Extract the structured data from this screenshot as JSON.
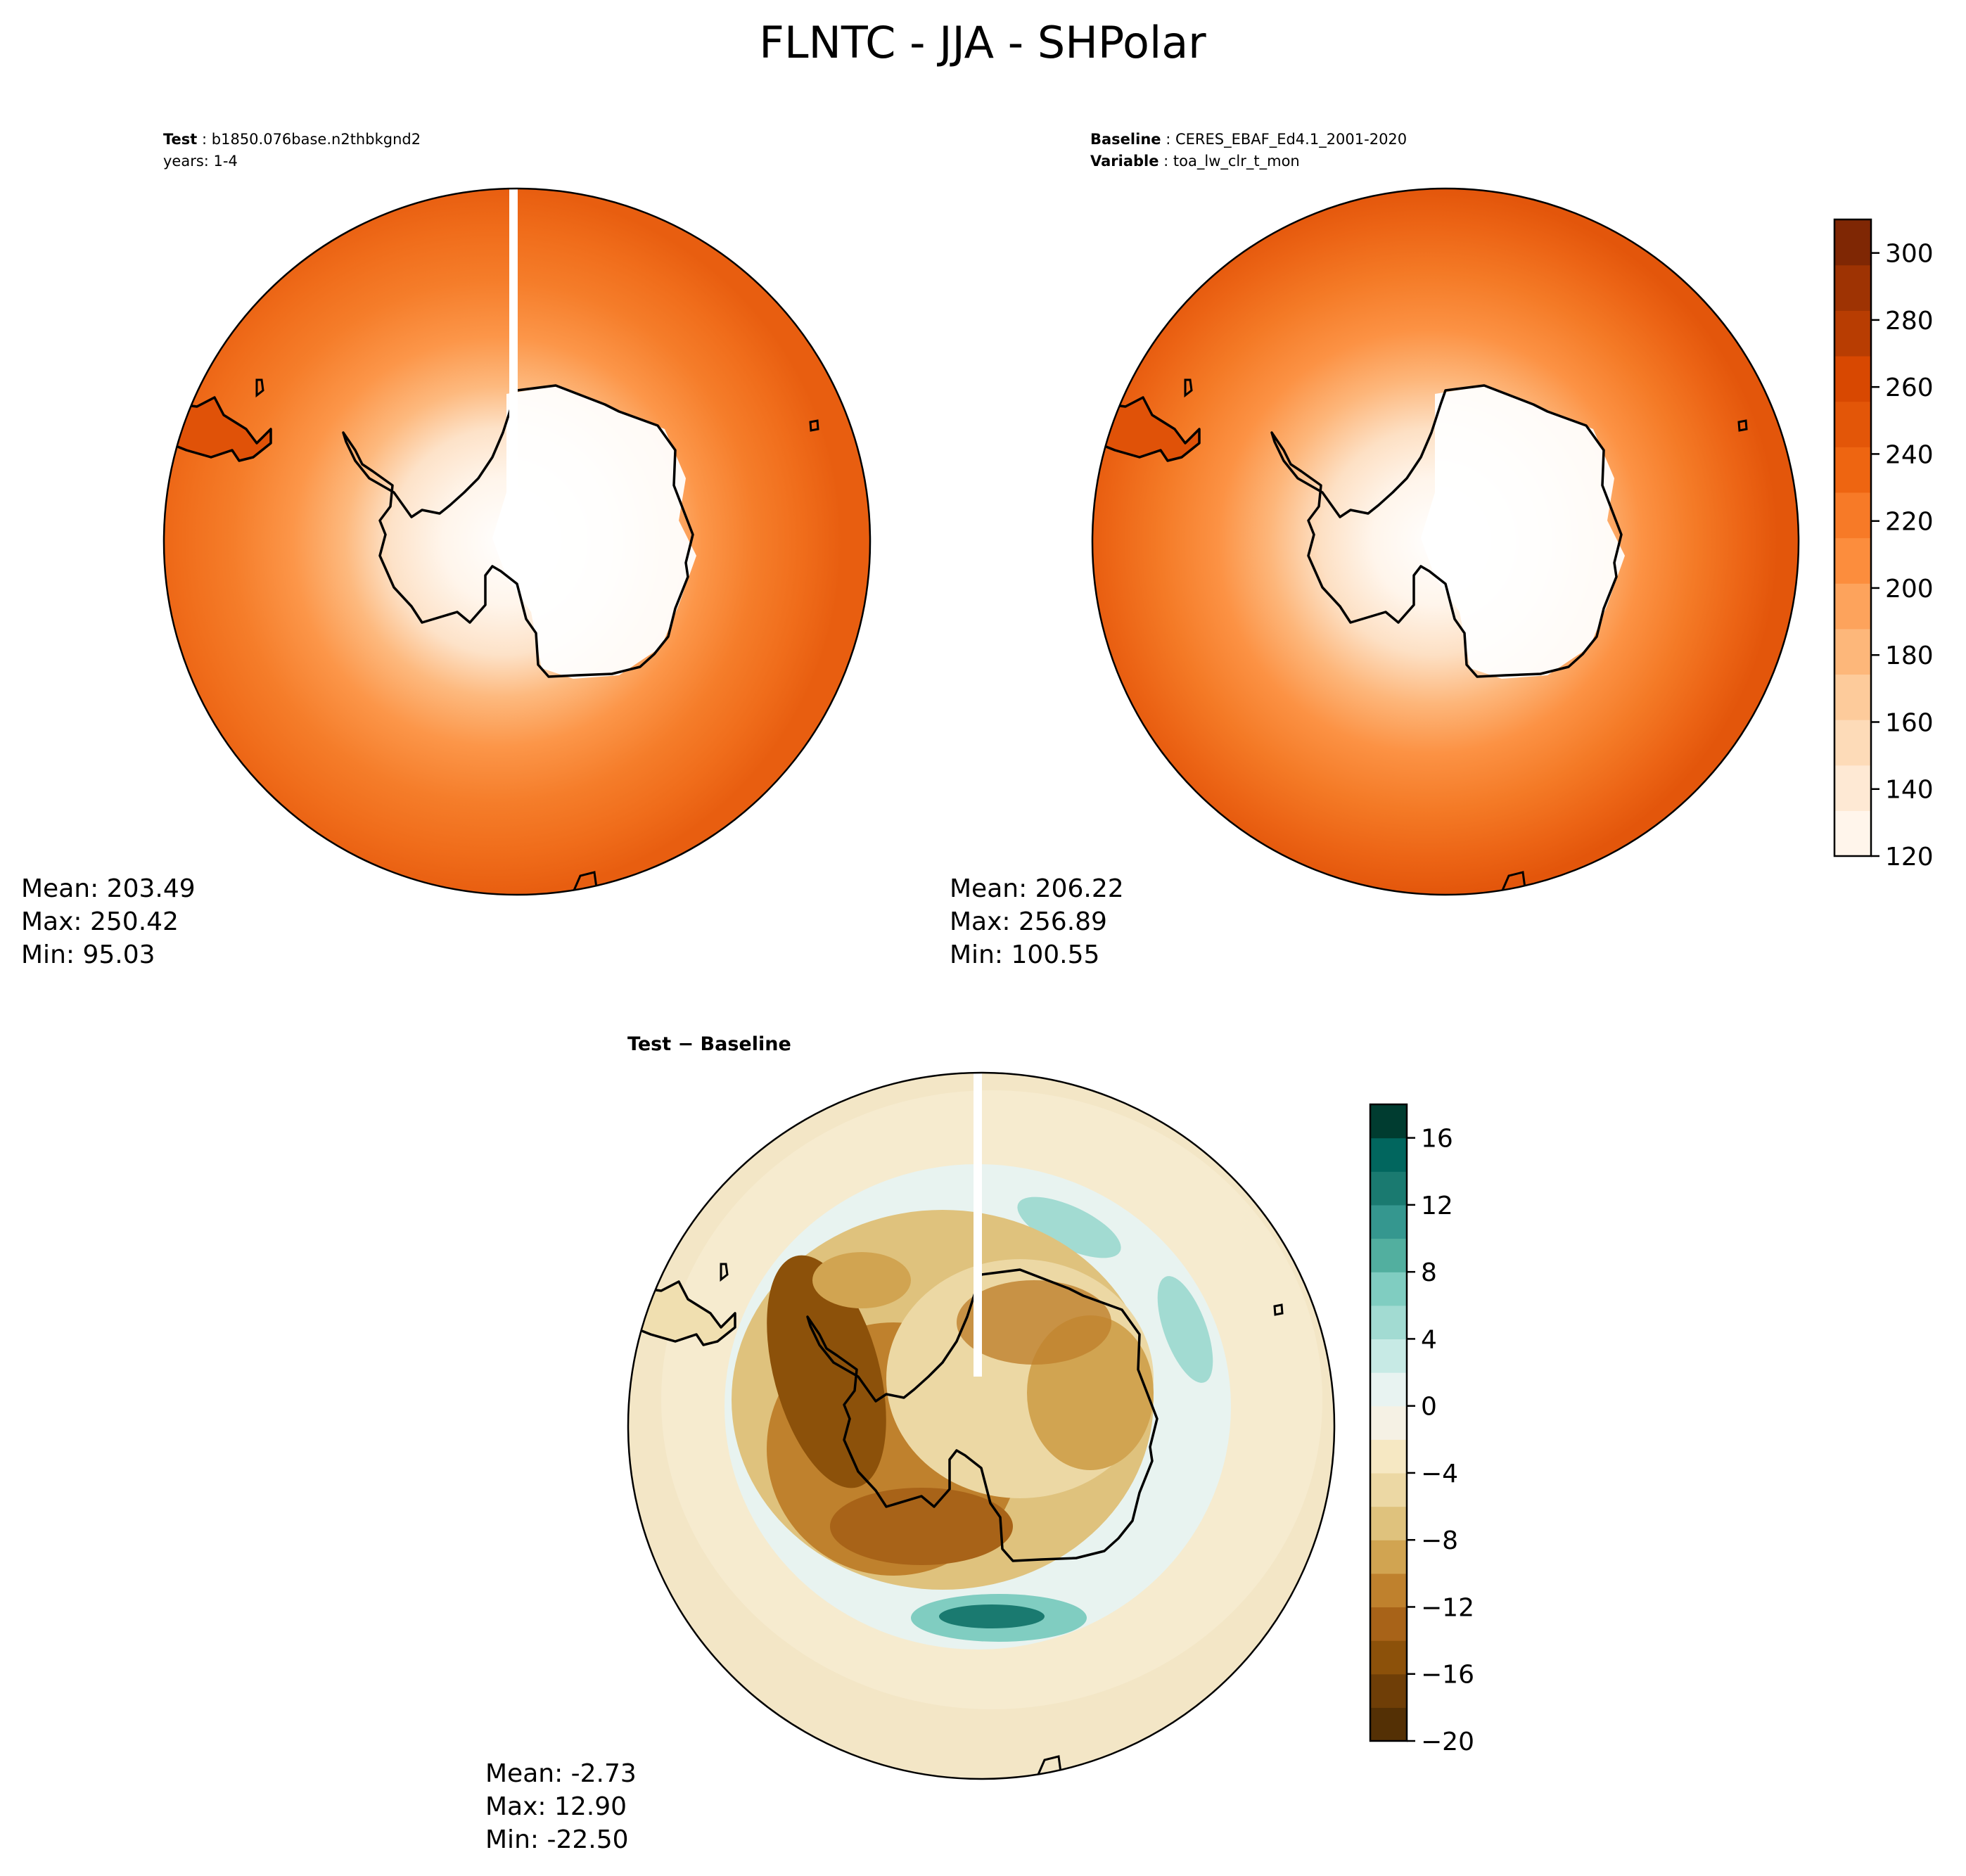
{
  "figure": {
    "title": "FLNTC - JJA - SHPolar"
  },
  "panels": [
    {
      "id": "test",
      "header_bold": "Test",
      "header_value": "b1850.076base.n2thbkgnd2",
      "subheader": "years: 1-4",
      "stats": [
        "Mean: 203.49",
        "Max: 250.42",
        "Min: 95.03"
      ]
    },
    {
      "id": "baseline",
      "header_bold": "Baseline",
      "header_value": "CERES_EBAF_Ed4.1_2001-2020",
      "subheader_bold": "Variable",
      "subheader_value": "toa_lw_clr_t_mon",
      "stats": [
        "Mean: 206.22",
        "Max: 256.89",
        "Min: 100.55"
      ]
    },
    {
      "id": "diff",
      "header_bold": "Test − Baseline",
      "stats": [
        "Mean: -2.73",
        "Max: 12.90",
        "Min: -22.50"
      ]
    }
  ],
  "colorbars": {
    "field": {
      "min": 120,
      "max": 310,
      "ticks": [
        "120",
        "140",
        "160",
        "180",
        "200",
        "220",
        "240",
        "260",
        "280",
        "300"
      ],
      "tick_values": [
        120,
        140,
        160,
        180,
        200,
        220,
        240,
        260,
        280,
        300
      ],
      "colors": [
        "#fff5eb",
        "#fee9d4",
        "#fddbb8",
        "#fdcb9b",
        "#fdb77a",
        "#fda35c",
        "#fc8d3d",
        "#f77a27",
        "#ee6511",
        "#e35608",
        "#d84801",
        "#b83d02",
        "#9e3303",
        "#7f2704"
      ]
    },
    "diff": {
      "min": -20,
      "max": 18,
      "ticks": [
        "−20",
        "−16",
        "−12",
        "−8",
        "−4",
        "0",
        "4",
        "8",
        "12",
        "16"
      ],
      "tick_values": [
        -20,
        -16,
        -12,
        -8,
        -4,
        0,
        4,
        8,
        12,
        16
      ],
      "colors": [
        "#543005",
        "#6f3e07",
        "#8c510a",
        "#a86318",
        "#bf812d",
        "#d1a451",
        "#dfc27d",
        "#ecd8a4",
        "#f6e8c3",
        "#f5f1e4",
        "#e8f3f1",
        "#c7eae5",
        "#a2dbd2",
        "#80cdc1",
        "#52af9f",
        "#35978f",
        "#1a7a70",
        "#01665e",
        "#003c30"
      ]
    }
  }
}
